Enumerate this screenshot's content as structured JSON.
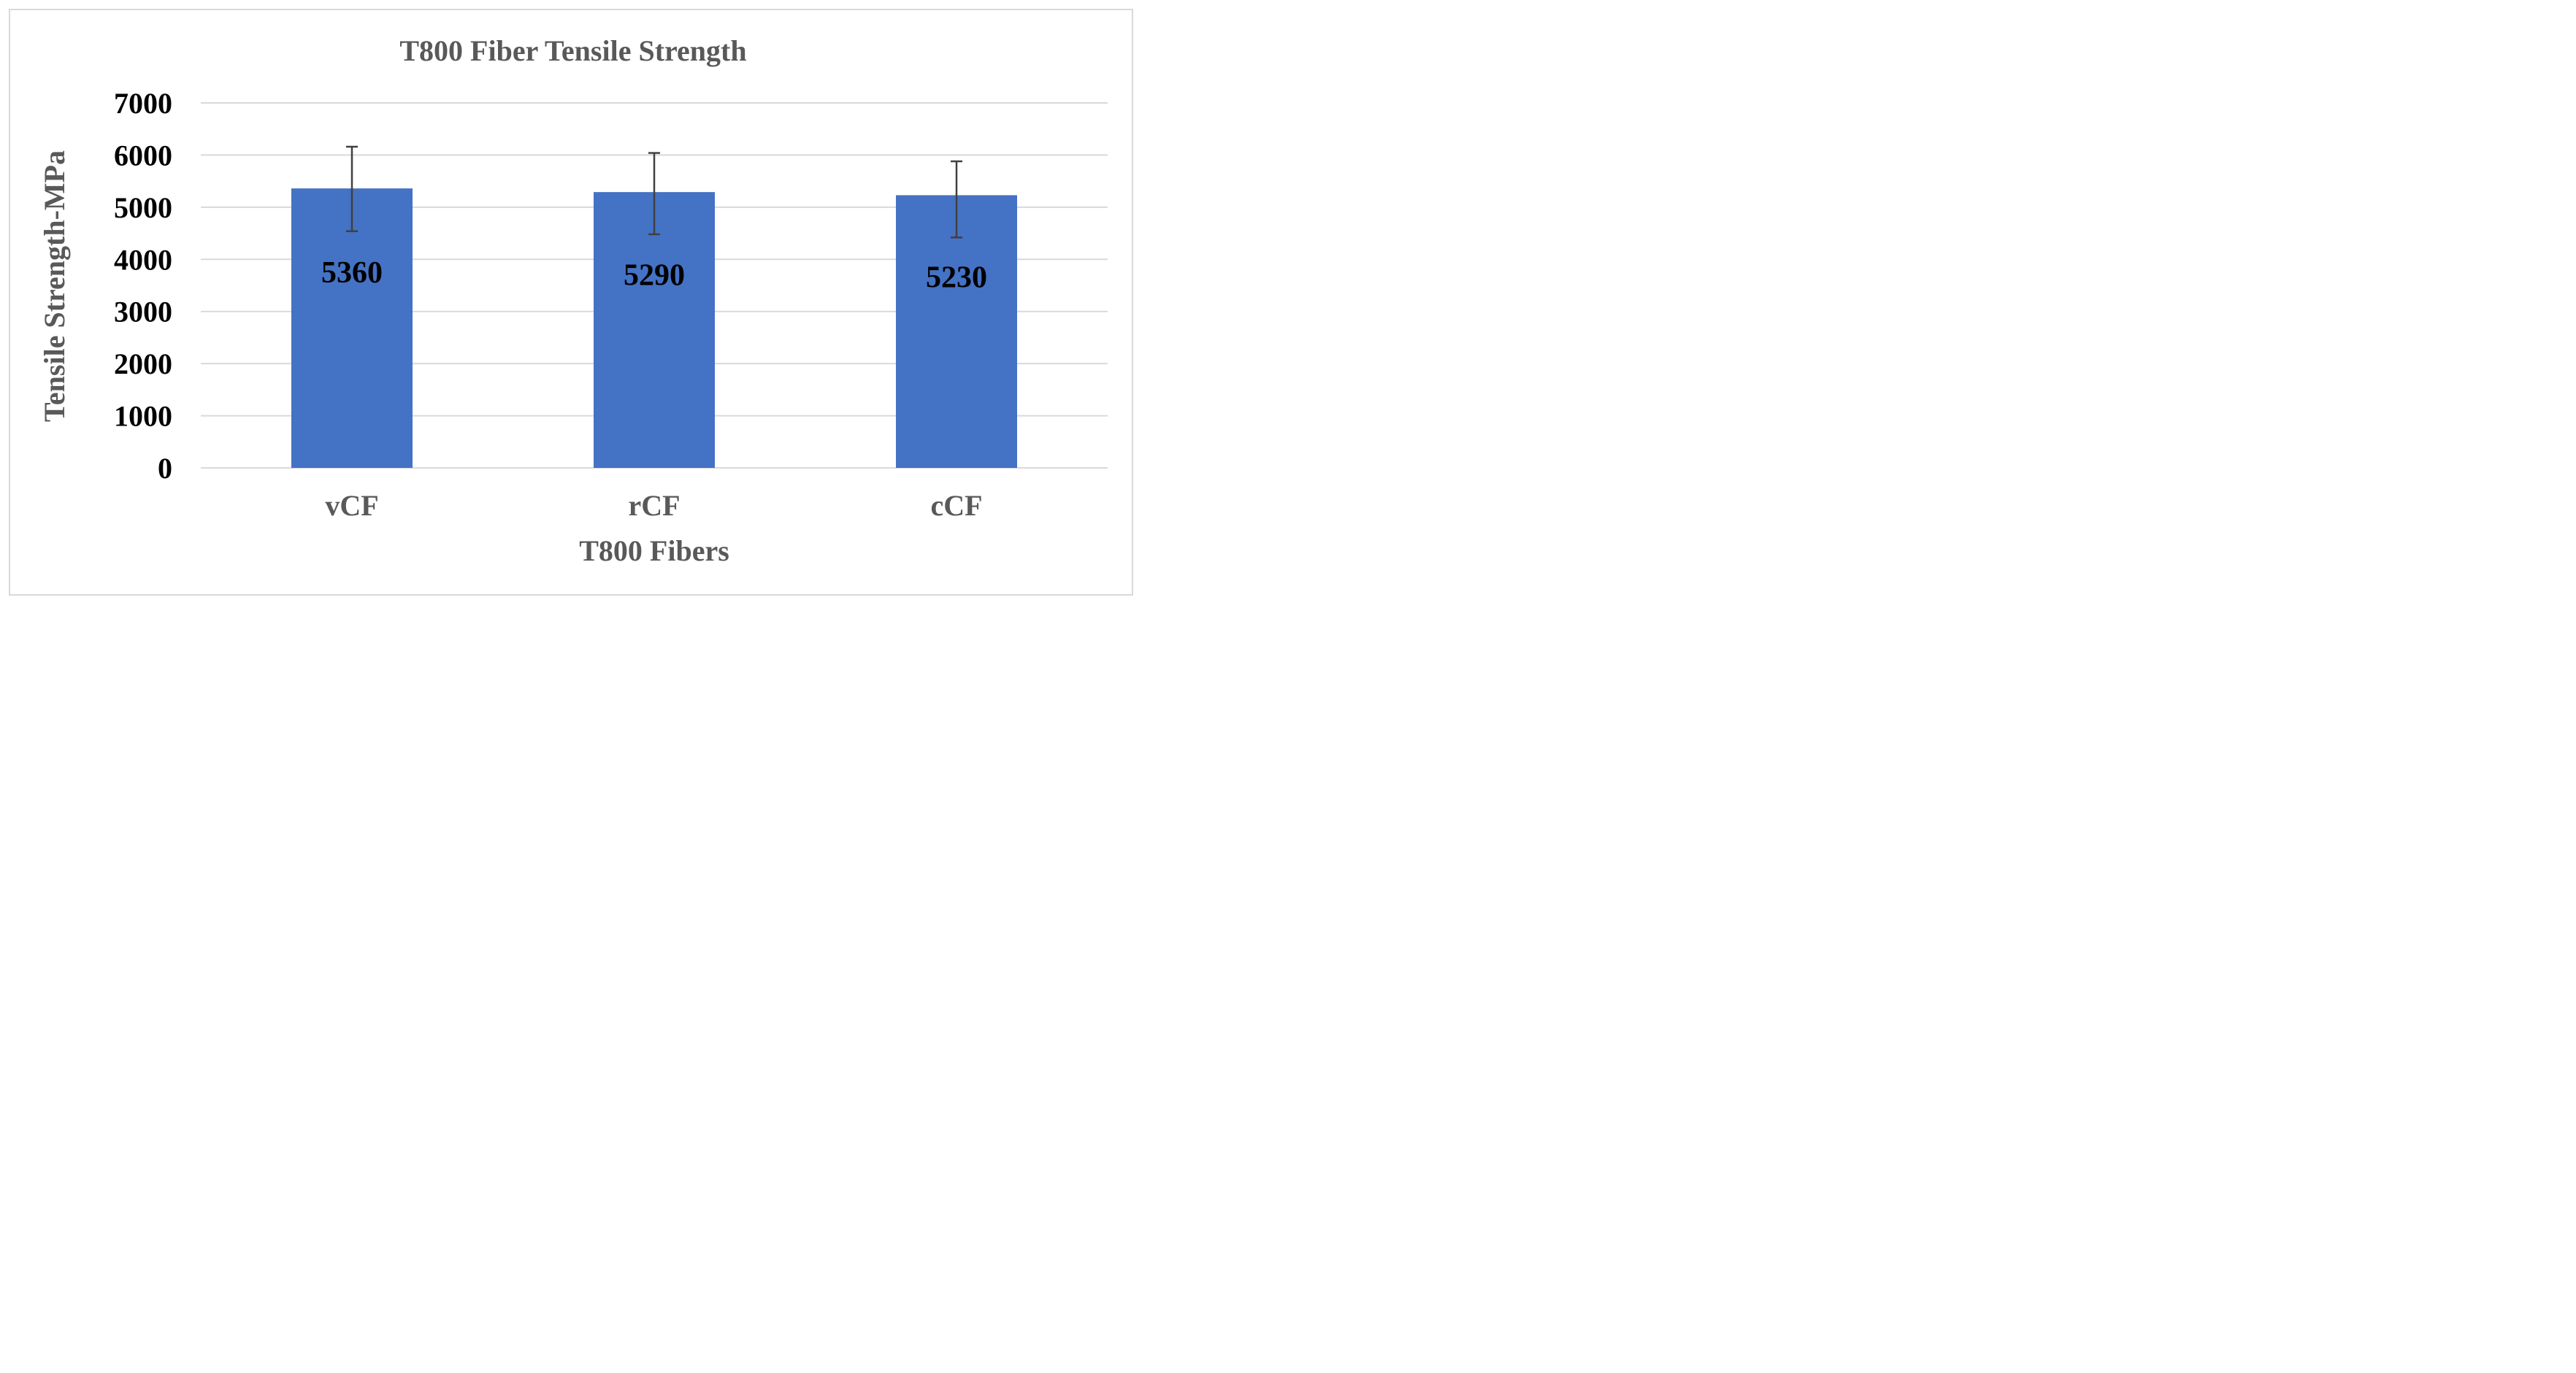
{
  "chart_data": {
    "type": "bar",
    "title": "T800 Fiber Tensile Strength",
    "xlabel": "T800 Fibers",
    "ylabel": "Tensile Strength-MPa",
    "categories": [
      "vCF",
      "rCF",
      "cCF"
    ],
    "values": [
      5360,
      5290,
      5230
    ],
    "data_labels": [
      "5360",
      "5290",
      "5230"
    ],
    "error_bars": [
      {
        "low": 4540,
        "high": 6160
      },
      {
        "low": 4480,
        "high": 6040
      },
      {
        "low": 4420,
        "high": 5880
      }
    ],
    "ylim": [
      0,
      7000
    ],
    "yticks": [
      0,
      1000,
      2000,
      3000,
      4000,
      5000,
      6000,
      7000
    ],
    "ytick_labels": [
      "0",
      "1000",
      "2000",
      "3000",
      "4000",
      "5000",
      "6000",
      "7000"
    ],
    "grid": true,
    "legend": "none",
    "colors": {
      "bar": "#4472c4",
      "gridline": "#d9d9d9",
      "error_bar": "#404040",
      "title": "#595959",
      "frame": "#d9d9d9"
    }
  }
}
